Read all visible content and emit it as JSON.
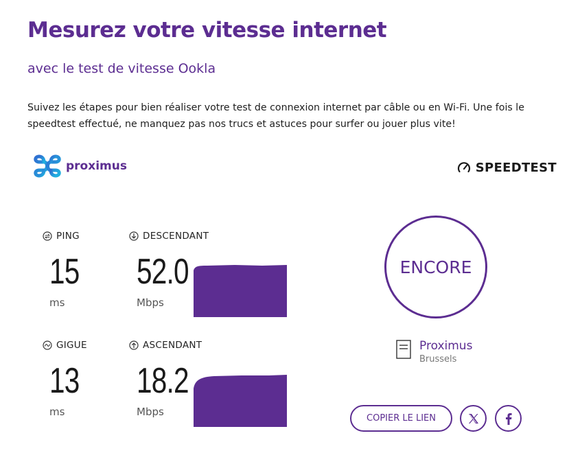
{
  "header": {
    "title": "Mesurez votre vitesse internet",
    "subtitle": "avec le test de vitesse Ookla",
    "intro": "Suivez les étapes pour bien réaliser votre test de connexion internet par câble ou en Wi-Fi. Une fois le speedtest effectué, ne manquez pas nos trucs et astuces pour surfer ou jouer plus vite!"
  },
  "widget": {
    "provider_logo_text": "proximus",
    "speedtest_logo_text": "SPEEDTEST",
    "metrics": {
      "ping": {
        "label": "PING",
        "value": "15",
        "unit": "ms",
        "icon": "ping-icon"
      },
      "download": {
        "label": "DESCENDANT",
        "value": "52.0",
        "unit": "Mbps",
        "icon": "download-arrow-icon"
      },
      "jitter": {
        "label": "GIGUE",
        "value": "13",
        "unit": "ms",
        "icon": "jitter-icon"
      },
      "upload": {
        "label": "ASCENDANT",
        "value": "18.2",
        "unit": "Mbps",
        "icon": "upload-arrow-icon"
      }
    },
    "encore_button": "ENCORE",
    "server": {
      "name": "Proximus",
      "location": "Brussels",
      "icon": "server-icon"
    },
    "copy_link_button": "COPIER LE LIEN",
    "social": {
      "x_icon": "x-icon",
      "facebook_icon": "facebook-icon"
    },
    "colors": {
      "accent": "#5c2d91",
      "graph_fill": "#5c2d91",
      "text": "#1a1a1a"
    }
  }
}
